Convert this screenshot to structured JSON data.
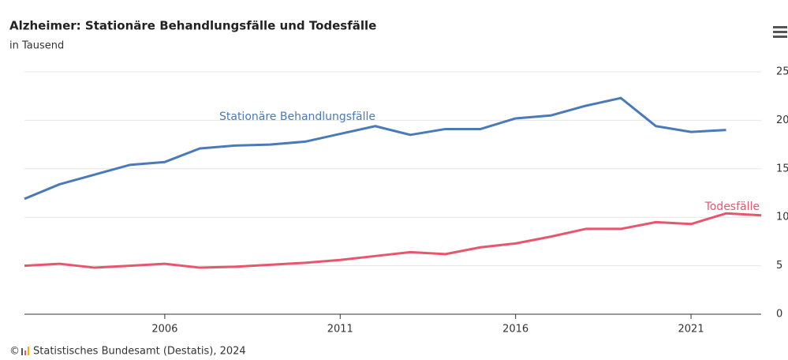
{
  "chart_data": {
    "type": "line",
    "title": "Alzheimer: Stationäre Behandlungsfälle und Todesfälle",
    "subtitle": "in Tausend",
    "copyright": "©",
    "source": "Statistisches Bundesamt (Destatis), 2024",
    "x": [
      2002,
      2003,
      2004,
      2005,
      2006,
      2007,
      2008,
      2009,
      2010,
      2011,
      2012,
      2013,
      2014,
      2015,
      2016,
      2017,
      2018,
      2019,
      2020,
      2021,
      2022,
      2023
    ],
    "series": [
      {
        "name": "Stationäre Behandlungsfälle",
        "color": "#4a7ab8",
        "values": [
          11.9,
          13.4,
          14.4,
          15.4,
          15.7,
          17.1,
          17.4,
          17.5,
          17.8,
          18.6,
          19.4,
          18.5,
          19.1,
          19.1,
          20.2,
          20.5,
          21.5,
          22.3,
          19.4,
          18.8,
          19.0,
          null
        ]
      },
      {
        "name": "Todesfälle",
        "color": "#e8566e",
        "values": [
          5.0,
          5.2,
          4.8,
          5.0,
          5.2,
          4.8,
          4.9,
          5.1,
          5.3,
          5.6,
          6.0,
          6.4,
          6.2,
          6.9,
          7.3,
          8.0,
          8.8,
          8.8,
          9.5,
          9.3,
          10.4,
          10.2
        ]
      }
    ],
    "xlim": [
      2002,
      2023
    ],
    "xticks": [
      2006,
      2011,
      2016,
      2021
    ],
    "ylim": [
      0,
      25
    ],
    "yticks": [
      0,
      5,
      10,
      15,
      20,
      25
    ],
    "grid": true
  }
}
